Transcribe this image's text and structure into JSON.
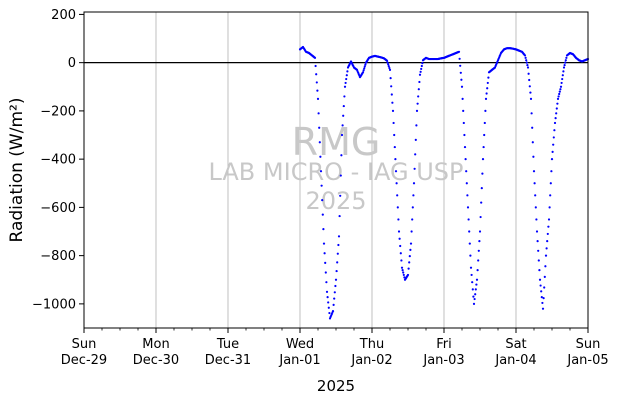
{
  "chart_data": {
    "type": "scatter",
    "xlabel": "2025",
    "ylabel": "Radiation (W/m²)",
    "ylim": [
      -1100,
      210
    ],
    "xlim": [
      "2024-12-29",
      "2025-01-05"
    ],
    "yticks": [
      200,
      0,
      -200,
      -400,
      -600,
      -800,
      -1000
    ],
    "ytick_labels": [
      "200",
      "0",
      "−200",
      "−400",
      "−600",
      "−800",
      "−1000"
    ],
    "xticks": [
      {
        "date": "2024-12-29",
        "day": "Sun",
        "label": "Dec-29"
      },
      {
        "date": "2024-12-30",
        "day": "Mon",
        "label": "Dec-30"
      },
      {
        "date": "2024-12-31",
        "day": "Tue",
        "label": "Dec-31"
      },
      {
        "date": "2025-01-01",
        "day": "Wed",
        "label": "Jan-01"
      },
      {
        "date": "2025-01-02",
        "day": "Thu",
        "label": "Jan-02"
      },
      {
        "date": "2025-01-03",
        "day": "Fri",
        "label": "Jan-03"
      },
      {
        "date": "2025-01-04",
        "day": "Sat",
        "label": "Jan-04"
      },
      {
        "date": "2025-01-05",
        "day": "Sun",
        "label": "Jan-05"
      }
    ],
    "grid": "vertical",
    "zero_line": true,
    "marker_color": "#0000ff",
    "watermark": [
      "RMG",
      "LAB MICRO - IAG USP",
      "2025"
    ],
    "series": [
      {
        "x": [
          "2025-01-01 00:00",
          "2025-01-01 01:00",
          "2025-01-01 02:00",
          "2025-01-01 03:00",
          "2025-01-01 04:00",
          "2025-01-01 05:00",
          "2025-01-01 06:00",
          "2025-01-01 07:00",
          "2025-01-01 08:00",
          "2025-01-01 09:00",
          "2025-01-01 10:00",
          "2025-01-01 11:00",
          "2025-01-01 12:00",
          "2025-01-01 13:00",
          "2025-01-01 14:00",
          "2025-01-01 15:00",
          "2025-01-01 16:00",
          "2025-01-01 17:00",
          "2025-01-01 18:00",
          "2025-01-01 19:00",
          "2025-01-01 20:00",
          "2025-01-01 21:00",
          "2025-01-01 22:00",
          "2025-01-01 23:00",
          "2025-01-02 00:00",
          "2025-01-02 01:00",
          "2025-01-02 02:00",
          "2025-01-02 03:00",
          "2025-01-02 04:00",
          "2025-01-02 05:00",
          "2025-01-02 06:00",
          "2025-01-02 07:00",
          "2025-01-02 08:00",
          "2025-01-02 09:00",
          "2025-01-02 10:00",
          "2025-01-02 11:00",
          "2025-01-02 12:00",
          "2025-01-02 13:00",
          "2025-01-02 14:00",
          "2025-01-02 15:00",
          "2025-01-02 16:00",
          "2025-01-02 17:00",
          "2025-01-02 18:00",
          "2025-01-02 19:00",
          "2025-01-02 20:00",
          "2025-01-02 21:00",
          "2025-01-02 22:00",
          "2025-01-02 23:00",
          "2025-01-03 00:00",
          "2025-01-03 01:00",
          "2025-01-03 02:00",
          "2025-01-03 03:00",
          "2025-01-03 04:00",
          "2025-01-03 05:00",
          "2025-01-03 06:00",
          "2025-01-03 07:00",
          "2025-01-03 08:00",
          "2025-01-03 09:00",
          "2025-01-03 10:00",
          "2025-01-03 11:00",
          "2025-01-03 12:00",
          "2025-01-03 13:00",
          "2025-01-03 14:00",
          "2025-01-03 15:00",
          "2025-01-03 16:00",
          "2025-01-03 17:00",
          "2025-01-03 18:00",
          "2025-01-03 19:00",
          "2025-01-03 20:00",
          "2025-01-03 21:00",
          "2025-01-03 22:00",
          "2025-01-03 23:00",
          "2025-01-04 00:00",
          "2025-01-04 01:00",
          "2025-01-04 02:00",
          "2025-01-04 03:00",
          "2025-01-04 04:00",
          "2025-01-04 05:00",
          "2025-01-04 06:00",
          "2025-01-04 07:00",
          "2025-01-04 08:00",
          "2025-01-04 09:00",
          "2025-01-04 10:00",
          "2025-01-04 11:00",
          "2025-01-04 12:00",
          "2025-01-04 13:00",
          "2025-01-04 14:00",
          "2025-01-04 15:00",
          "2025-01-04 16:00",
          "2025-01-04 17:00",
          "2025-01-04 18:00",
          "2025-01-04 19:00",
          "2025-01-04 20:00",
          "2025-01-04 21:00",
          "2025-01-04 22:00",
          "2025-01-04 23:00",
          "2025-01-05 00:00"
        ],
        "y": [
          55,
          65,
          45,
          40,
          30,
          20,
          -150,
          -450,
          -750,
          -950,
          -1060,
          -1030,
          -900,
          -720,
          -300,
          -100,
          -20,
          5,
          -20,
          -30,
          -60,
          -40,
          0,
          20,
          25,
          28,
          25,
          22,
          18,
          8,
          -30,
          -200,
          -450,
          -700,
          -850,
          -900,
          -880,
          -750,
          -500,
          -200,
          -50,
          10,
          20,
          15,
          15,
          15,
          15,
          18,
          20,
          25,
          30,
          35,
          40,
          45,
          -100,
          -350,
          -600,
          -850,
          -1000,
          -900,
          -700,
          -400,
          -150,
          -40,
          -30,
          -20,
          10,
          40,
          55,
          60,
          60,
          58,
          55,
          50,
          45,
          30,
          -20,
          -150,
          -450,
          -700,
          -900,
          -1020,
          -800,
          -650,
          -400,
          -250,
          -150,
          -100,
          -20,
          30,
          40,
          35,
          20,
          10,
          5,
          10,
          15
        ]
      }
    ]
  }
}
